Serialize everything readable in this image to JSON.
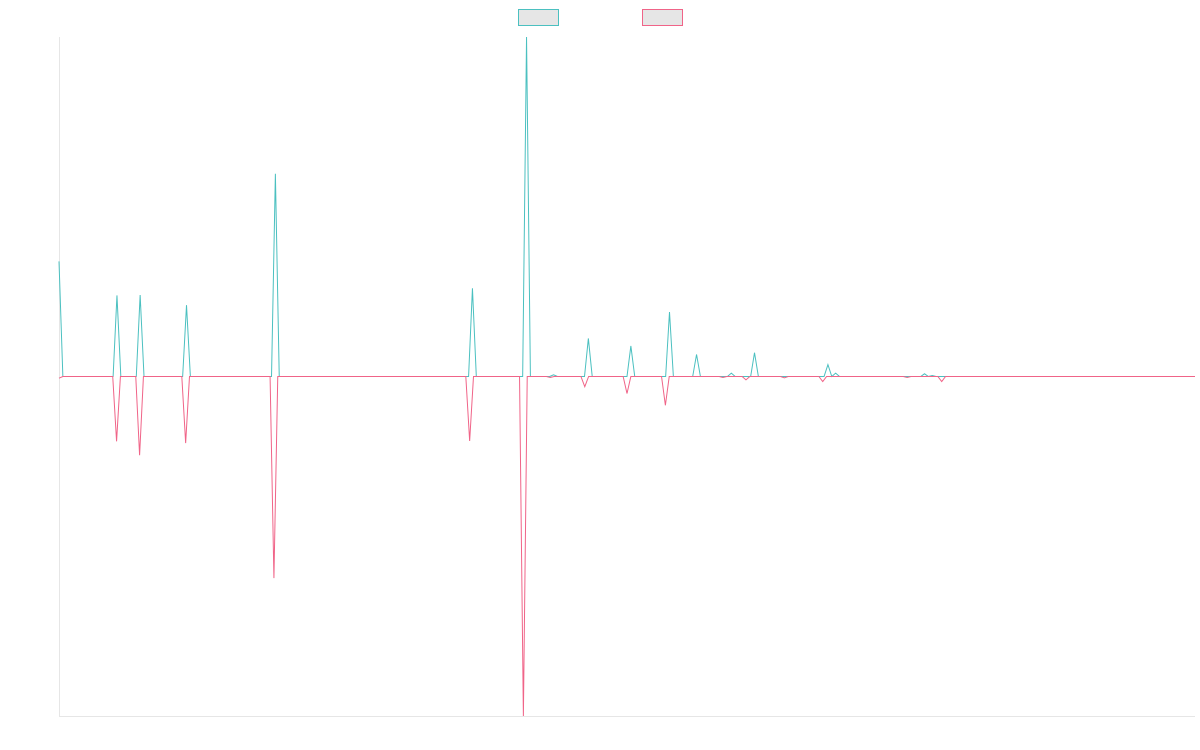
{
  "chart_data": {
    "type": "line",
    "title": "",
    "xlabel": "",
    "ylabel": "",
    "grid": false,
    "legend": {
      "position": "top-center",
      "show_labels": false
    },
    "ylim": [
      -1,
      1
    ],
    "series": [
      {
        "name": "",
        "color": "#4bc0c0",
        "values": [
          0.339,
          0,
          0,
          0,
          0,
          0,
          0,
          0,
          0,
          0,
          0,
          0,
          0,
          0,
          0,
          0.239,
          0,
          0,
          0,
          0,
          0,
          0.24,
          0,
          0,
          0,
          0,
          0,
          0,
          0,
          0,
          0,
          0,
          0,
          0.21,
          0,
          0,
          0,
          0,
          0,
          0,
          0,
          0,
          0,
          0,
          0,
          0,
          0,
          0,
          0,
          0,
          0,
          0,
          0,
          0,
          0,
          0,
          0.597,
          0,
          0,
          0,
          0,
          0,
          0,
          0,
          0,
          0,
          0,
          0,
          0,
          0,
          0,
          0,
          0,
          0,
          0,
          0,
          0,
          0,
          0,
          0,
          0,
          0,
          0,
          0,
          0,
          0,
          0,
          0,
          0,
          0,
          0,
          0,
          0,
          0,
          0,
          0,
          0,
          0,
          0,
          0,
          0,
          0,
          0,
          0,
          0,
          0,
          0,
          0.26,
          0,
          0,
          0,
          0,
          0,
          0,
          0,
          0,
          0,
          0,
          0,
          0,
          0,
          1,
          0,
          0,
          0,
          0,
          0,
          0,
          0.005,
          0,
          0,
          0,
          0,
          0,
          0,
          0,
          0,
          0.112,
          0,
          0,
          0,
          0,
          0,
          0,
          0,
          0,
          0,
          0,
          0.09,
          0,
          0,
          0,
          0,
          0,
          0,
          0,
          0,
          0,
          0.19,
          0,
          0,
          0,
          0,
          0,
          0,
          0.065,
          0,
          0,
          0,
          0,
          0,
          0,
          0,
          0,
          0.01,
          0,
          0,
          0,
          0,
          0,
          0.07,
          0,
          0,
          0,
          0,
          0,
          0,
          0,
          0,
          0,
          0,
          0,
          0,
          0,
          0,
          0,
          0,
          0,
          0,
          0.035,
          0,
          0.01,
          0,
          0,
          0,
          0,
          0,
          0,
          0,
          0,
          0,
          0,
          0,
          0,
          0,
          0,
          0,
          0,
          0,
          0,
          0,
          0,
          0,
          0,
          0.008,
          0,
          0.003,
          0,
          0,
          0,
          0,
          0,
          0,
          0,
          0,
          0,
          0,
          0,
          0,
          0,
          0,
          0,
          0,
          0,
          0,
          0,
          0,
          0,
          0,
          0,
          0,
          0,
          0,
          0,
          0,
          0,
          0,
          0,
          0,
          0,
          0,
          0,
          0,
          0,
          0,
          0,
          0,
          0,
          0,
          0,
          0,
          0,
          0,
          0,
          0,
          0,
          0,
          0,
          0,
          0,
          0,
          0,
          0,
          0,
          0,
          0,
          0,
          0,
          0,
          0,
          0,
          0,
          0,
          0,
          0
        ]
      },
      {
        "name": "",
        "color": "#f06488",
        "values": [
          -0.005,
          0,
          0,
          0,
          0,
          0,
          0,
          0,
          0,
          0,
          0,
          0,
          0,
          0,
          0,
          -0.191,
          0,
          0,
          0,
          0,
          0,
          -0.232,
          0,
          0,
          0,
          0,
          0,
          0,
          0,
          0,
          0,
          0,
          0,
          -0.196,
          0,
          0,
          0,
          0,
          0,
          0,
          0,
          0,
          0,
          0,
          0,
          0,
          0,
          0,
          0,
          0,
          0,
          0,
          0,
          0,
          0,
          0,
          -0.594,
          0,
          0,
          0,
          0,
          0,
          0,
          0,
          0,
          0,
          0,
          0,
          0,
          0,
          0,
          0,
          0,
          0,
          0,
          0,
          0,
          0,
          0,
          0,
          0,
          0,
          0,
          0,
          0,
          0,
          0,
          0,
          0,
          0,
          0,
          0,
          0,
          0,
          0,
          0,
          0,
          0,
          0,
          0,
          0,
          0,
          0,
          0,
          0,
          0,
          0,
          -0.19,
          0,
          0,
          0,
          0,
          0,
          0,
          0,
          0,
          0,
          0,
          0,
          0,
          0,
          -1,
          0,
          0,
          0,
          0,
          0,
          0,
          -0.003,
          0,
          0,
          0,
          0,
          0,
          0,
          0,
          0,
          -0.03,
          0,
          0,
          0,
          0,
          0,
          0,
          0,
          0,
          0,
          0,
          -0.05,
          0,
          0,
          0,
          0,
          0,
          0,
          0,
          0,
          0,
          -0.085,
          0,
          0,
          0,
          0,
          0,
          0,
          0,
          0,
          0,
          0,
          0,
          0,
          0,
          0,
          -0.003,
          0,
          0,
          0,
          0,
          0,
          -0.01,
          0,
          0,
          0,
          0,
          0,
          0,
          0,
          0,
          0,
          -0.004,
          0,
          0,
          0,
          0,
          0,
          0,
          0,
          0,
          0,
          -0.015,
          0,
          0,
          0,
          0,
          0,
          0,
          0,
          0,
          0,
          0,
          0,
          0,
          0,
          0,
          0,
          0,
          0,
          0,
          0,
          0,
          0,
          -0.003,
          0,
          0,
          0,
          0,
          0,
          0,
          0,
          0,
          -0.015,
          0,
          0,
          0,
          0,
          0,
          0,
          0,
          0,
          0,
          0,
          0,
          0,
          0,
          0,
          0,
          0,
          0,
          0,
          0,
          0,
          0,
          0,
          0,
          0,
          0,
          0,
          0,
          0,
          0,
          0,
          0,
          0,
          0,
          0,
          0,
          0,
          0,
          0,
          0,
          0,
          0,
          0,
          0,
          0,
          0,
          0,
          0,
          0,
          0,
          0,
          0,
          0,
          0,
          0,
          0,
          0,
          0,
          0,
          0,
          0,
          0,
          0,
          0,
          0,
          0,
          0
        ]
      }
    ]
  }
}
